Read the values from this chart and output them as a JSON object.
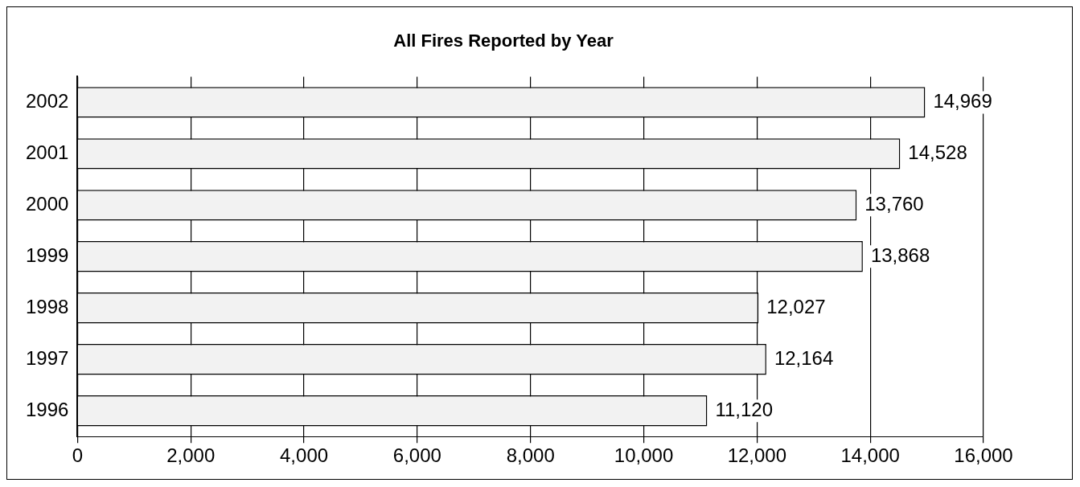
{
  "chart_data": {
    "type": "bar",
    "orientation": "horizontal",
    "title": "All Fires Reported by Year",
    "categories": [
      "2002",
      "2001",
      "2000",
      "1999",
      "1998",
      "1997",
      "1996"
    ],
    "values": [
      14969,
      14528,
      13760,
      13868,
      12027,
      12164,
      11120
    ],
    "value_labels": [
      "14,969",
      "14,528",
      "13,760",
      "13,868",
      "12,027",
      "12,164",
      "11,120"
    ],
    "color": "#f2f2f2",
    "xlim": [
      0,
      16000
    ],
    "xticks": [
      0,
      {
        "value": 2000,
        "label": "2,000"
      },
      {
        "value": 4000,
        "label": "4,000"
      },
      {
        "value": 6000,
        "label": "6,000"
      },
      {
        "value": 8000,
        "label": "8,000"
      },
      {
        "value": 10000,
        "label": "10,000"
      },
      {
        "value": 12000,
        "label": "12,000"
      },
      {
        "value": 14000,
        "label": "14,000"
      },
      {
        "value": 16000,
        "label": "16,000"
      }
    ],
    "grid": "x",
    "legend": false
  }
}
